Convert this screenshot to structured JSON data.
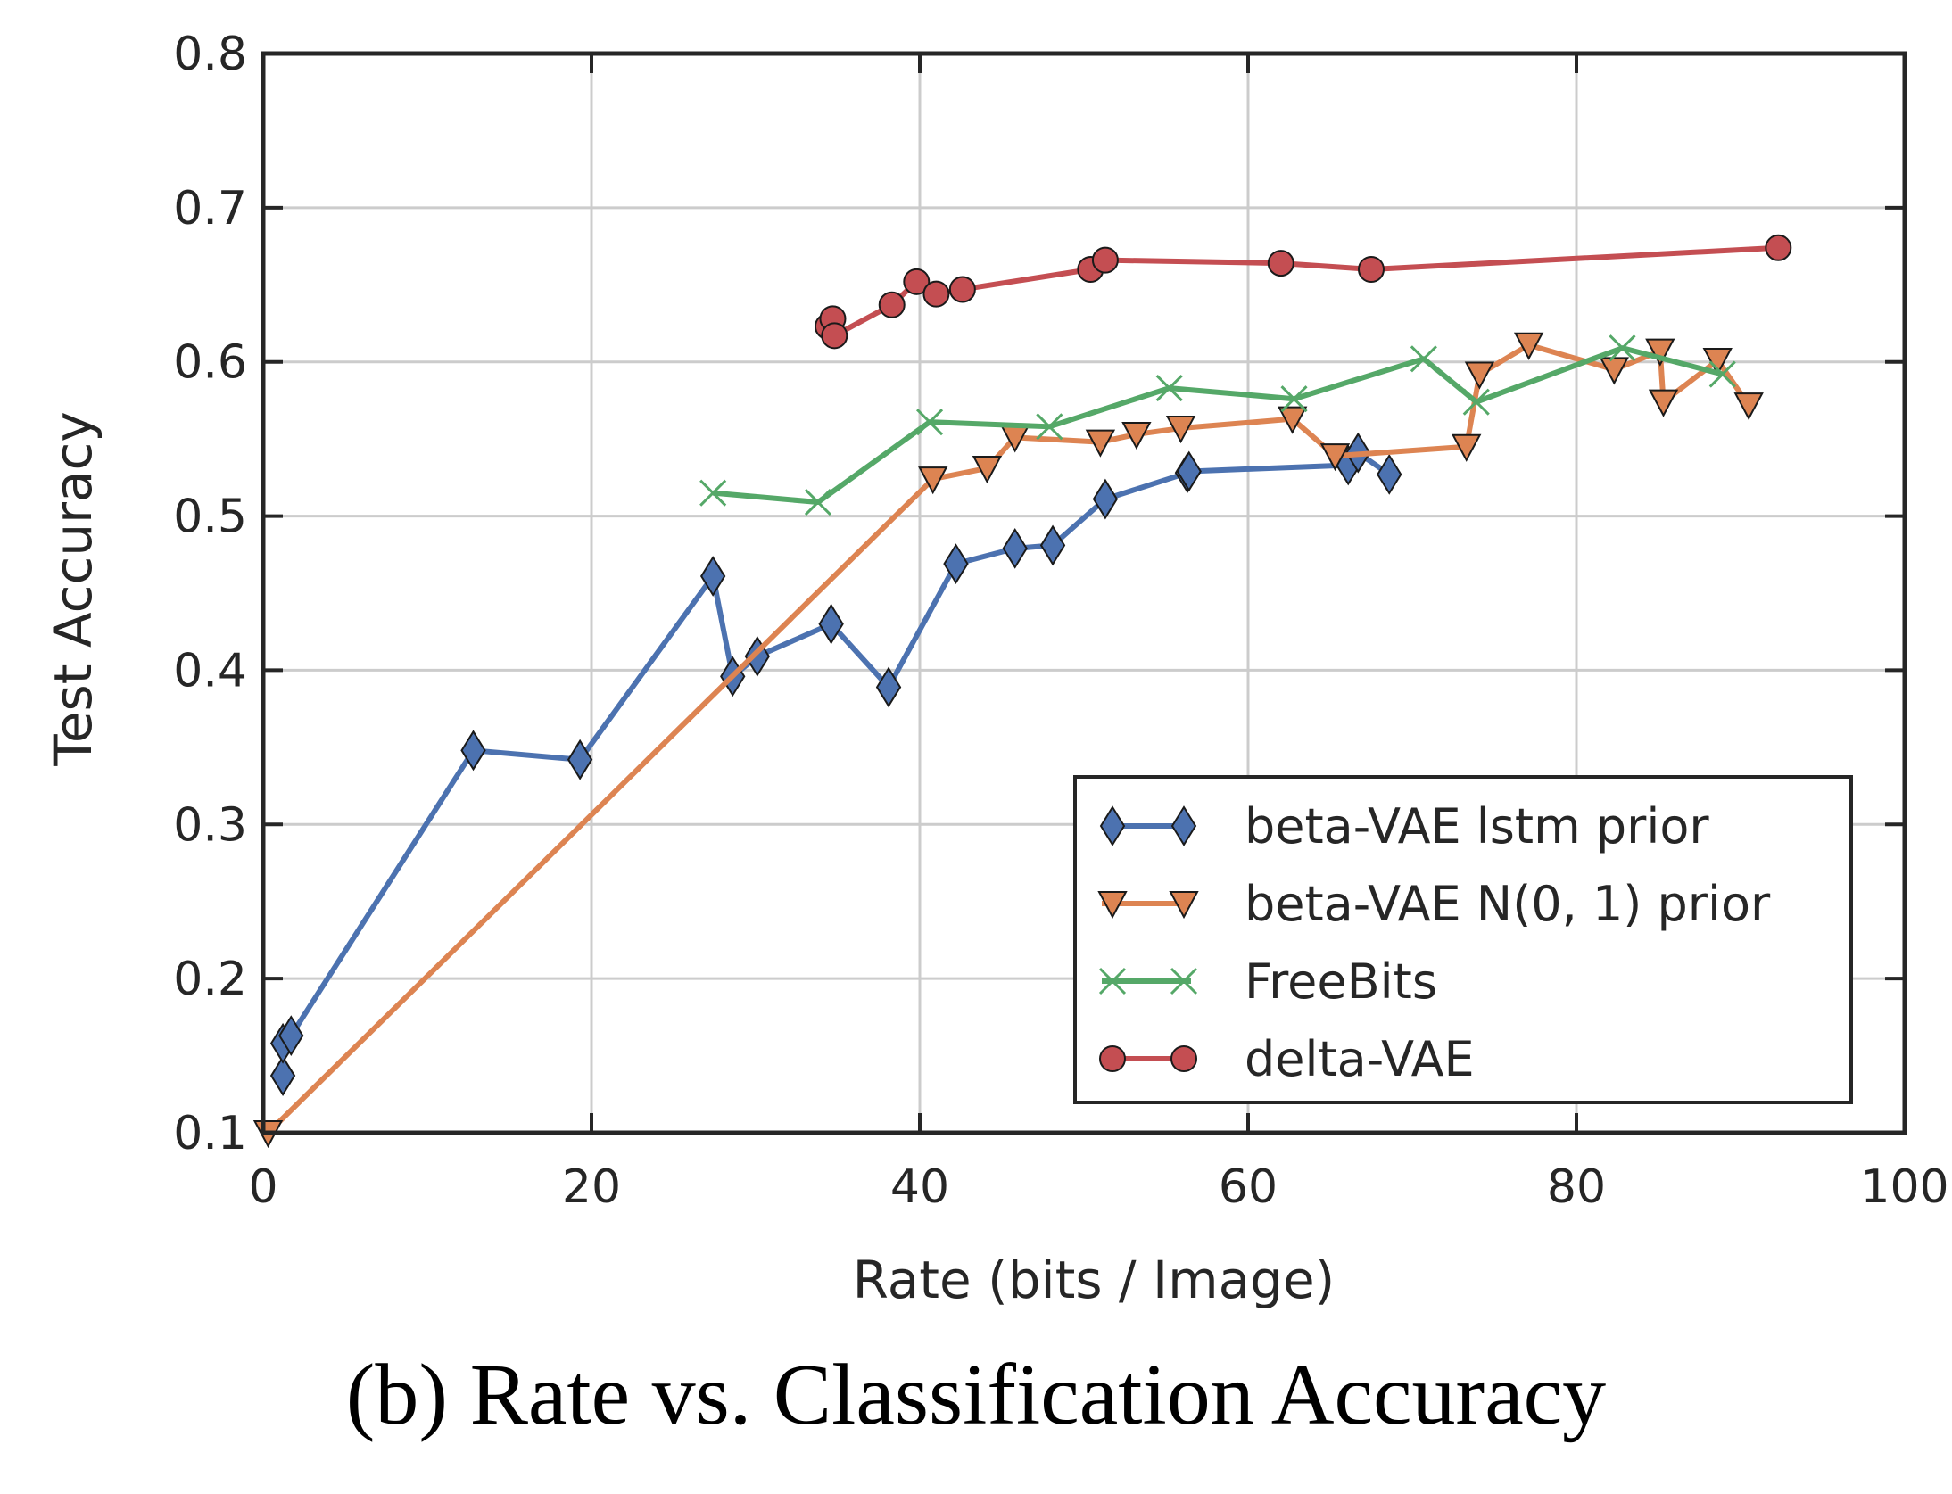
{
  "chart_data": {
    "type": "line",
    "caption": "(b) Rate vs. Classification Accuracy",
    "xlabel": "Rate (bits / Image)",
    "ylabel": "Test Accuracy",
    "xlim": [
      0,
      100
    ],
    "ylim": [
      0.1,
      0.8
    ],
    "xticks": [
      "0",
      "20",
      "40",
      "60",
      "80",
      "100"
    ],
    "yticks": [
      "0.1",
      "0.2",
      "0.3",
      "0.4",
      "0.5",
      "0.6",
      "0.7",
      "0.8"
    ],
    "grid": true,
    "legend_position": "bottom-right",
    "series": [
      {
        "name": "beta-VAE lstm prior",
        "color": "#4c72b0",
        "marker": "diamond",
        "x": [
          1.2,
          1.2,
          1.7,
          12.8,
          19.3,
          27.4,
          28.6,
          30.1,
          34.6,
          38.1,
          42.2,
          45.8,
          48.1,
          51.3,
          56.3,
          56.4,
          66.1,
          66.7,
          68.6
        ],
        "y": [
          0.137,
          0.158,
          0.163,
          0.348,
          0.342,
          0.461,
          0.396,
          0.409,
          0.43,
          0.389,
          0.469,
          0.479,
          0.481,
          0.511,
          0.528,
          0.529,
          0.533,
          0.541,
          0.527
        ]
      },
      {
        "name": "beta-VAE N(0, 1) prior",
        "color": "#dd8452",
        "marker": "triangle-down",
        "x": [
          0.3,
          40.8,
          44.1,
          45.8,
          51.0,
          53.2,
          55.9,
          62.7,
          65.3,
          73.3,
          74.1,
          77.1,
          82.3,
          85.1,
          85.3,
          88.6,
          90.5
        ],
        "y": [
          0.1,
          0.524,
          0.531,
          0.551,
          0.548,
          0.553,
          0.557,
          0.563,
          0.539,
          0.545,
          0.592,
          0.611,
          0.595,
          0.607,
          0.574,
          0.601,
          0.572
        ]
      },
      {
        "name": "FreeBits",
        "color": "#55a868",
        "marker": "x",
        "x": [
          27.4,
          33.8,
          40.6,
          47.9,
          55.2,
          62.8,
          70.7,
          73.9,
          82.8,
          88.9
        ],
        "y": [
          0.515,
          0.509,
          0.561,
          0.558,
          0.583,
          0.576,
          0.602,
          0.574,
          0.609,
          0.592
        ]
      },
      {
        "name": "delta-VAE",
        "color": "#c44e52",
        "marker": "circle",
        "x": [
          34.4,
          34.7,
          34.8,
          38.3,
          39.8,
          41.0,
          42.6,
          50.4,
          51.3,
          62.0,
          67.5,
          92.3
        ],
        "y": [
          0.623,
          0.628,
          0.617,
          0.637,
          0.652,
          0.644,
          0.647,
          0.66,
          0.666,
          0.664,
          0.66,
          0.674
        ]
      }
    ]
  }
}
